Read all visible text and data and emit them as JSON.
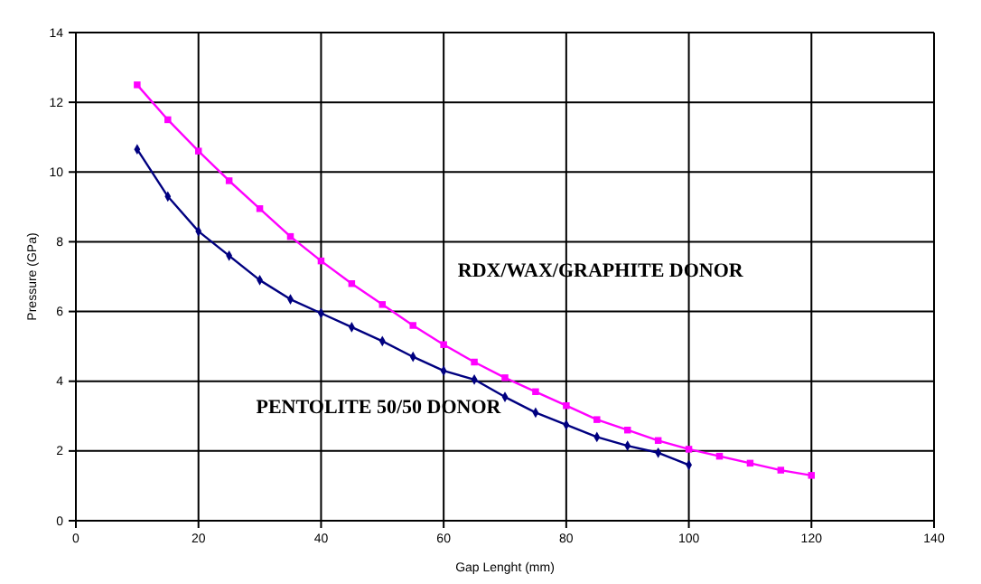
{
  "chart_data": {
    "type": "line",
    "xlabel": "Gap Lenght (mm)",
    "ylabel": "Pressure (GPa)",
    "xlim": [
      0,
      140
    ],
    "xticks": [
      0,
      20,
      40,
      60,
      80,
      100,
      120,
      140
    ],
    "ylim": [
      0,
      14
    ],
    "yticks": [
      0,
      2,
      4,
      6,
      8,
      10,
      12,
      14
    ],
    "grid": true,
    "series": [
      {
        "name": "RDX/WAX/GRAPHITE DONOR",
        "color": "#ff00ff",
        "marker": "square",
        "x": [
          10,
          15,
          20,
          25,
          30,
          35,
          40,
          45,
          50,
          55,
          60,
          65,
          70,
          75,
          80,
          85,
          90,
          95,
          100,
          105,
          110,
          115,
          120
        ],
        "values": [
          12.5,
          11.5,
          10.6,
          9.75,
          8.95,
          8.15,
          7.45,
          6.8,
          6.2,
          5.6,
          5.05,
          4.55,
          4.1,
          3.7,
          3.3,
          2.9,
          2.6,
          2.3,
          2.05,
          1.85,
          1.65,
          1.45,
          1.3
        ]
      },
      {
        "name": "PENTOLITE 50/50 DONOR",
        "color": "#000080",
        "marker": "diamond",
        "x": [
          10,
          15,
          20,
          25,
          30,
          35,
          40,
          45,
          50,
          55,
          60,
          65,
          70,
          75,
          80,
          85,
          90,
          95,
          100
        ],
        "values": [
          10.65,
          9.3,
          8.3,
          7.6,
          6.9,
          6.35,
          5.95,
          5.55,
          5.15,
          4.7,
          4.3,
          4.05,
          3.55,
          3.1,
          2.75,
          2.4,
          2.15,
          1.95,
          1.6
        ]
      }
    ]
  }
}
